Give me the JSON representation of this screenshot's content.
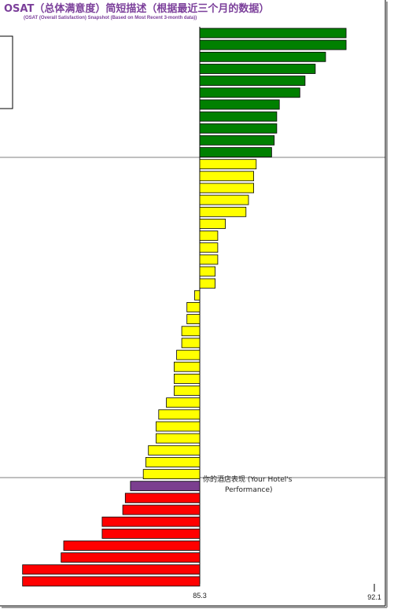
{
  "title": "OSAT（总体满意度）简短描述（根据最近三个月的数据）",
  "subtitle": "(OSAT (Overall Satisfaction) Snapshot (Based on Most Recent 3-month data))",
  "chart_data": {
    "type": "bar",
    "orientation": "horizontal",
    "baseline": 85.3,
    "xlim": [
      78.4,
      92.1
    ],
    "x_ticks": [
      "85.3",
      "92.1"
    ],
    "annotation": {
      "line1": "你的酒店表现 (Your Hotel's",
      "line2": "Performance)"
    },
    "colors": {
      "green": "#008000",
      "yellow": "#ffff00",
      "purple": "#7b3f8f",
      "red": "#ff0000"
    },
    "bars": [
      {
        "value": 91.0,
        "color": "green"
      },
      {
        "value": 91.0,
        "color": "green"
      },
      {
        "value": 90.2,
        "color": "green"
      },
      {
        "value": 89.8,
        "color": "green"
      },
      {
        "value": 89.4,
        "color": "green"
      },
      {
        "value": 89.2,
        "color": "green"
      },
      {
        "value": 88.4,
        "color": "green"
      },
      {
        "value": 88.3,
        "color": "green"
      },
      {
        "value": 88.3,
        "color": "green"
      },
      {
        "value": 88.2,
        "color": "green"
      },
      {
        "value": 88.1,
        "color": "green"
      },
      {
        "value": 87.5,
        "color": "yellow"
      },
      {
        "value": 87.4,
        "color": "yellow"
      },
      {
        "value": 87.4,
        "color": "yellow"
      },
      {
        "value": 87.2,
        "color": "yellow"
      },
      {
        "value": 87.1,
        "color": "yellow"
      },
      {
        "value": 86.3,
        "color": "yellow"
      },
      {
        "value": 86.0,
        "color": "yellow"
      },
      {
        "value": 86.0,
        "color": "yellow"
      },
      {
        "value": 86.0,
        "color": "yellow"
      },
      {
        "value": 85.9,
        "color": "yellow"
      },
      {
        "value": 85.9,
        "color": "yellow"
      },
      {
        "value": 85.1,
        "color": "yellow"
      },
      {
        "value": 84.8,
        "color": "yellow"
      },
      {
        "value": 84.8,
        "color": "yellow"
      },
      {
        "value": 84.6,
        "color": "yellow"
      },
      {
        "value": 84.6,
        "color": "yellow"
      },
      {
        "value": 84.4,
        "color": "yellow"
      },
      {
        "value": 84.3,
        "color": "yellow"
      },
      {
        "value": 84.3,
        "color": "yellow"
      },
      {
        "value": 84.3,
        "color": "yellow"
      },
      {
        "value": 84.0,
        "color": "yellow"
      },
      {
        "value": 83.7,
        "color": "yellow"
      },
      {
        "value": 83.6,
        "color": "yellow"
      },
      {
        "value": 83.6,
        "color": "yellow"
      },
      {
        "value": 83.3,
        "color": "yellow"
      },
      {
        "value": 83.2,
        "color": "yellow"
      },
      {
        "value": 83.1,
        "color": "yellow"
      },
      {
        "value": 82.6,
        "color": "purple",
        "highlight": true
      },
      {
        "value": 82.4,
        "color": "red"
      },
      {
        "value": 82.3,
        "color": "red"
      },
      {
        "value": 81.5,
        "color": "red"
      },
      {
        "value": 81.5,
        "color": "red"
      },
      {
        "value": 80.0,
        "color": "red"
      },
      {
        "value": 79.9,
        "color": "red"
      },
      {
        "value": 78.4,
        "color": "red"
      },
      {
        "value": 78.4,
        "color": "red"
      }
    ]
  }
}
